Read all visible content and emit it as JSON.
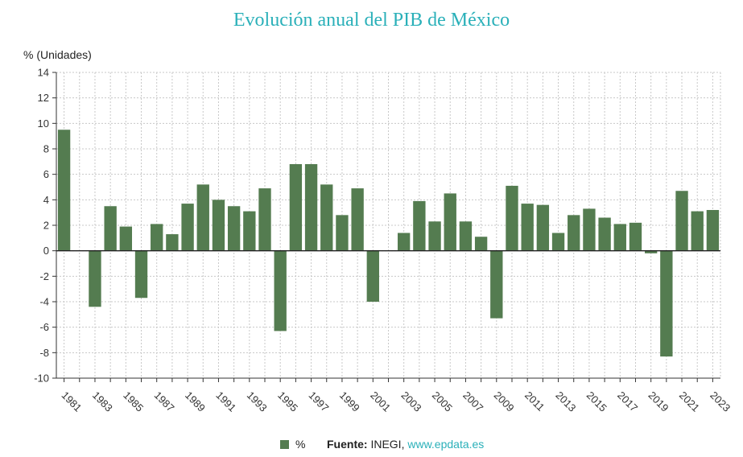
{
  "colors": {
    "bar": "#547c50",
    "title": "#2ab0b9",
    "grid": "#c8c8c8",
    "link": "#2ab0b9"
  },
  "chart_data": {
    "type": "bar",
    "title": "Evolución anual del PIB de México",
    "ylabel": "% (Unidades)",
    "xlabel": "",
    "ylim": [
      -10,
      14
    ],
    "yticks": [
      -10,
      -8,
      -6,
      -4,
      -2,
      0,
      2,
      4,
      6,
      8,
      10,
      12,
      14
    ],
    "categories": [
      "1981",
      "1982",
      "1983",
      "1984",
      "1985",
      "1986",
      "1987",
      "1988",
      "1989",
      "1990",
      "1991",
      "1992",
      "1993",
      "1994",
      "1995",
      "1996",
      "1997",
      "1998",
      "1999",
      "2000",
      "2001",
      "2002",
      "2003",
      "2004",
      "2005",
      "2006",
      "2007",
      "2008",
      "2009",
      "2010",
      "2011",
      "2012",
      "2013",
      "2014",
      "2015",
      "2016",
      "2017",
      "2018",
      "2019",
      "2020",
      "2021",
      "2022",
      "2023"
    ],
    "tick_labels": [
      "1981",
      "1983",
      "1985",
      "1987",
      "1989",
      "1991",
      "1993",
      "1995",
      "1997",
      "1999",
      "2001",
      "2003",
      "2005",
      "2007",
      "2009",
      "2011",
      "2013",
      "2015",
      "2017",
      "2019",
      "2021",
      "2023"
    ],
    "series": [
      {
        "name": "%",
        "values": [
          9.5,
          0,
          -4.4,
          3.5,
          1.9,
          -3.7,
          2.1,
          1.3,
          3.7,
          5.2,
          4.0,
          3.5,
          3.1,
          4.9,
          -6.3,
          6.8,
          6.8,
          5.2,
          2.8,
          4.9,
          -4.0,
          0,
          1.4,
          3.9,
          2.3,
          4.5,
          2.3,
          1.1,
          -5.3,
          5.1,
          3.7,
          3.6,
          1.4,
          2.8,
          3.3,
          2.6,
          2.1,
          2.2,
          -0.2,
          -8.3,
          4.7,
          3.1,
          3.2
        ]
      }
    ],
    "grid": true,
    "legend": "bottom-center"
  },
  "footer": {
    "legend_label": "%",
    "source_label": "Fuente:",
    "source_text": " INEGI, ",
    "source_link": "www.epdata.es"
  }
}
